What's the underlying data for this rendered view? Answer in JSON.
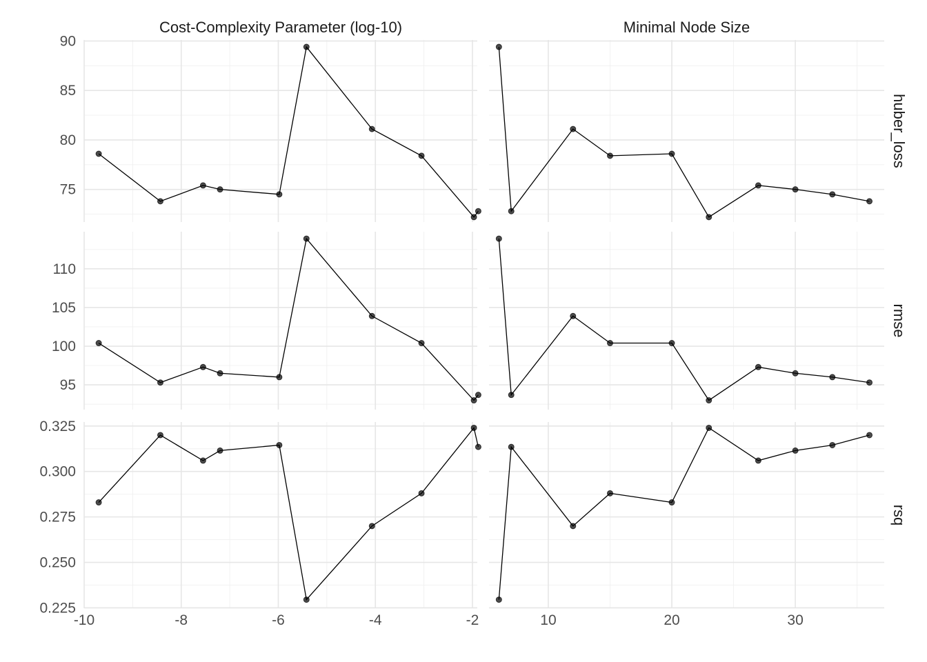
{
  "chart_data": {
    "type": "line",
    "facet_columns": [
      {
        "key": "cost_complexity",
        "label": "Cost-Complexity Parameter (log-10)",
        "xlim": [
          -10,
          -1.9
        ],
        "x_ticks": [
          -10,
          -8,
          -6,
          -4,
          -2
        ],
        "x_tick_labels": [
          "-10",
          "-8",
          "-6",
          "-4",
          "-2"
        ],
        "x_minor": [
          -9,
          -7,
          -5,
          -3
        ]
      },
      {
        "key": "min_n",
        "label": "Minimal Node Size",
        "xlim": [
          5.2,
          37.2
        ],
        "x_ticks": [
          10,
          20,
          30
        ],
        "x_tick_labels": [
          "10",
          "20",
          "30"
        ],
        "x_minor": [
          5,
          15,
          25,
          35
        ]
      }
    ],
    "facet_rows": [
      {
        "key": "huber_loss",
        "label": "huber_loss",
        "ylim": [
          71.7,
          90.1
        ],
        "y_ticks": [
          75,
          80,
          85,
          90
        ],
        "y_tick_labels": [
          "75",
          "80",
          "85",
          "90"
        ],
        "y_minor": [
          72.5,
          77.5,
          82.5,
          87.5
        ],
        "series": {
          "cost_complexity": [
            [
              -9.7,
              78.6
            ],
            [
              -8.43,
              73.8
            ],
            [
              -7.55,
              75.4
            ],
            [
              -7.2,
              75.0
            ],
            [
              -5.98,
              74.5
            ],
            [
              -5.42,
              89.4
            ],
            [
              -4.07,
              81.1
            ],
            [
              -3.05,
              78.4
            ],
            [
              -1.97,
              72.2
            ],
            [
              -1.88,
              72.8
            ]
          ],
          "min_n": [
            [
              6,
              89.4
            ],
            [
              7,
              72.8
            ],
            [
              12,
              81.1
            ],
            [
              15,
              78.4
            ],
            [
              20,
              78.6
            ],
            [
              23,
              72.2
            ],
            [
              27,
              75.4
            ],
            [
              30,
              75.0
            ],
            [
              33,
              74.5
            ],
            [
              36,
              73.8
            ]
          ]
        }
      },
      {
        "key": "rmse",
        "label": "rmse",
        "ylim": [
          91.8,
          114.8
        ],
        "y_ticks": [
          95,
          100,
          105,
          110
        ],
        "y_tick_labels": [
          "95",
          "100",
          "105",
          "110"
        ],
        "y_minor": [
          92.5,
          97.5,
          102.5,
          107.5,
          112.5
        ],
        "series": {
          "cost_complexity": [
            [
              -9.7,
              100.4
            ],
            [
              -8.43,
              95.3
            ],
            [
              -7.55,
              97.3
            ],
            [
              -7.2,
              96.5
            ],
            [
              -5.98,
              96.0
            ],
            [
              -5.42,
              113.9
            ],
            [
              -4.07,
              103.9
            ],
            [
              -3.05,
              100.4
            ],
            [
              -1.97,
              93.0
            ],
            [
              -1.88,
              93.7
            ]
          ],
          "min_n": [
            [
              6,
              113.9
            ],
            [
              7,
              93.7
            ],
            [
              12,
              103.9
            ],
            [
              15,
              100.4
            ],
            [
              20,
              100.4
            ],
            [
              23,
              93.0
            ],
            [
              27,
              97.3
            ],
            [
              30,
              96.5
            ],
            [
              33,
              96.0
            ],
            [
              36,
              95.3
            ]
          ]
        }
      },
      {
        "key": "rsq",
        "label": "rsq",
        "ylim": [
          0.2248,
          0.3272
        ],
        "y_ticks": [
          0.225,
          0.25,
          0.275,
          0.3,
          0.325
        ],
        "y_tick_labels": [
          "0.225",
          "0.250",
          "0.275",
          "0.300",
          "0.325"
        ],
        "y_minor": [
          0.2375,
          0.2625,
          0.2875,
          0.3125
        ],
        "series": {
          "cost_complexity": [
            [
              -9.7,
              0.283
            ],
            [
              -8.43,
              0.32
            ],
            [
              -7.55,
              0.306
            ],
            [
              -7.2,
              0.3115
            ],
            [
              -5.98,
              0.3145
            ],
            [
              -5.42,
              0.2295
            ],
            [
              -4.07,
              0.27
            ],
            [
              -3.05,
              0.288
            ],
            [
              -1.97,
              0.324
            ],
            [
              -1.88,
              0.3135
            ]
          ],
          "min_n": [
            [
              6,
              0.2295
            ],
            [
              7,
              0.3135
            ],
            [
              12,
              0.27
            ],
            [
              15,
              0.288
            ],
            [
              20,
              0.283
            ],
            [
              23,
              0.324
            ],
            [
              27,
              0.306
            ],
            [
              30,
              0.3115
            ],
            [
              33,
              0.3145
            ],
            [
              36,
              0.32
            ]
          ]
        }
      }
    ],
    "grid": true,
    "legend": "none",
    "colors": {
      "line": "#000000",
      "point": "#333333",
      "grid_major": "#e6e6e6",
      "grid_minor": "#f0f0f0",
      "tick_text": "#4d4d4d",
      "strip_text": "#1a1a1a"
    }
  }
}
